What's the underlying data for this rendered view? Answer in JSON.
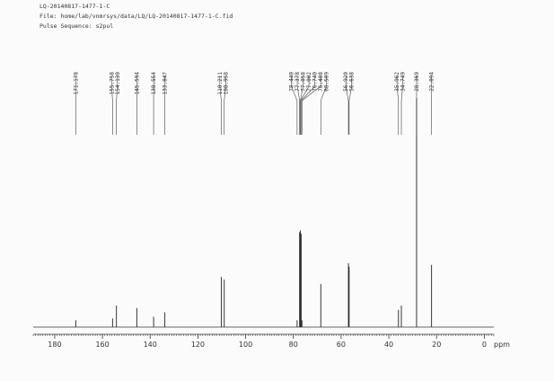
{
  "header": {
    "sample": "LQ-20140817-1477-1-C",
    "file": "File: home/lab/vnmrsys/data/LQ/LQ-20140817-1477-1-C.fid",
    "pulse": "Pulse Sequence: s2pul"
  },
  "chart_data": {
    "type": "spectrum",
    "x_unit": "ppm",
    "x": [
      171.178,
      155.758,
      154.13,
      145.594,
      138.554,
      133.847,
      110.211,
      108.958,
      78.44,
      77.378,
      77.058,
      77.002,
      76.74,
      76.408,
      68.509,
      56.92,
      56.638,
      35.962,
      34.749,
      28.369,
      22.094
    ],
    "peak_labels": [
      "171.178",
      "155.758",
      "154.130",
      "145.594",
      "138.554",
      "133.847",
      "110.211",
      "108.958",
      "78.440",
      "77.378",
      "77.058",
      "77.002",
      "76.740",
      "76.408",
      "68.509",
      "56.920",
      "56.638",
      "35.962",
      "34.749",
      "28.369",
      "22.094"
    ],
    "values": [
      8,
      10,
      25,
      22,
      12,
      17,
      58,
      55,
      8,
      110,
      112,
      100,
      108,
      8,
      50,
      74,
      70,
      20,
      25,
      265,
      72
    ],
    "xlim": [
      189,
      -4
    ],
    "ylim": [
      0,
      280
    ],
    "xticks": [
      180,
      160,
      140,
      120,
      100,
      80,
      60,
      40,
      20,
      0
    ],
    "color": "#222"
  }
}
